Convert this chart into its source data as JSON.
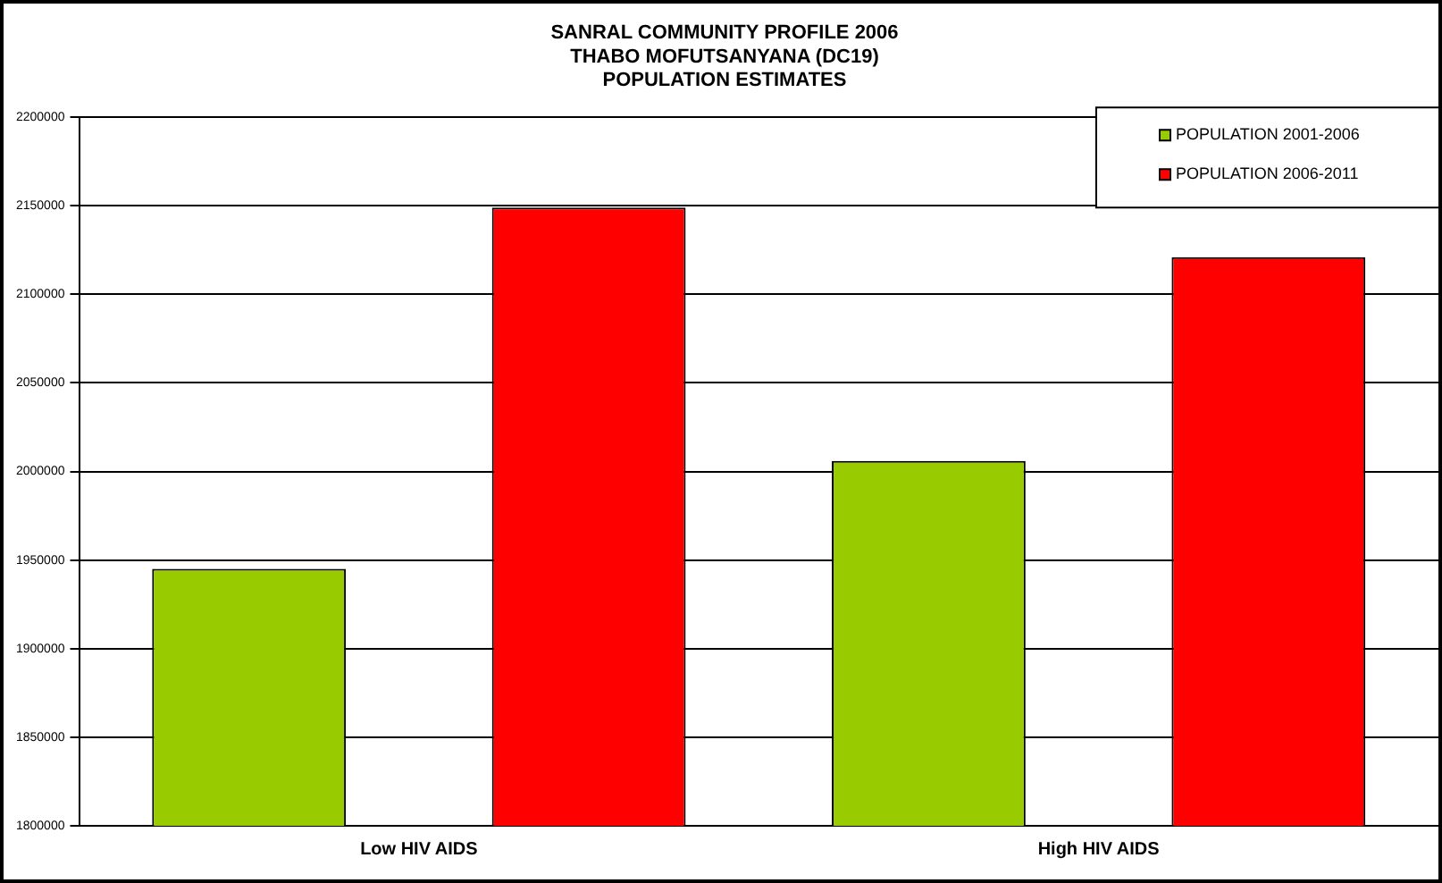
{
  "chart_data": {
    "type": "bar",
    "title": [
      "SANRAL COMMUNITY PROFILE 2006",
      "THABO MOFUTSANYANA (DC19)",
      "POPULATION ESTIMATES"
    ],
    "categories": [
      "Low HIV AIDS",
      "High HIV AIDS"
    ],
    "series": [
      {
        "name": "POPULATION 2001-2006",
        "color": "#99cc00",
        "values": [
          1945000,
          2006000
        ]
      },
      {
        "name": "POPULATION 2006-2011",
        "color": "#ff0000",
        "values": [
          2149000,
          2121000
        ]
      }
    ],
    "ylim": [
      1800000,
      2200000
    ],
    "yticks": [
      1800000,
      1850000,
      1900000,
      1950000,
      2000000,
      2050000,
      2100000,
      2150000,
      2200000
    ],
    "grid": "y",
    "legend": "top right"
  }
}
